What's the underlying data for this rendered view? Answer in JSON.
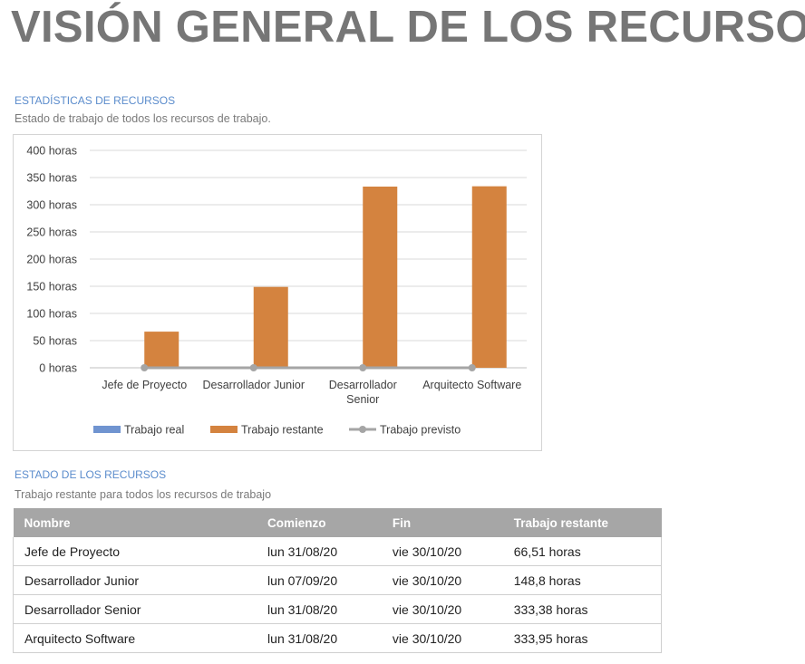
{
  "page": {
    "title": "VISIÓN GENERAL DE LOS RECURSOS"
  },
  "stats_section": {
    "heading": "ESTADÍSTICAS DE RECURSOS",
    "subheading": "Estado de trabajo de todos los recursos de trabajo."
  },
  "status_section": {
    "heading": "ESTADO DE LOS RECURSOS",
    "subheading": "Trabajo restante para todos los recursos de trabajo"
  },
  "chart_data": {
    "type": "bar",
    "categories": [
      [
        "Jefe de Proyecto"
      ],
      [
        "Desarrollador Junior"
      ],
      [
        "Desarrollador",
        "Senior"
      ],
      [
        "Arquitecto Software"
      ]
    ],
    "y_ticks": [
      "0 horas",
      "50 horas",
      "100 horas",
      "150 horas",
      "200 horas",
      "250 horas",
      "300 horas",
      "350 horas",
      "400 horas"
    ],
    "ylim": [
      0,
      400
    ],
    "grid": true,
    "legend_position": "bottom",
    "series": [
      {
        "name": "Trabajo real",
        "type": "bar",
        "color": "#7094d0",
        "values": [
          0,
          0,
          0,
          0
        ]
      },
      {
        "name": "Trabajo restante",
        "type": "bar",
        "color": "#d4833f",
        "values": [
          66.51,
          148.8,
          333.38,
          333.95
        ]
      },
      {
        "name": "Trabajo previsto",
        "type": "line",
        "color": "#a5a5a5",
        "values": [
          0,
          0,
          0,
          0
        ]
      }
    ]
  },
  "table": {
    "headers": [
      "Nombre",
      "Comienzo",
      "Fin",
      "Trabajo restante"
    ],
    "rows": [
      [
        "Jefe de Proyecto",
        "lun 31/08/20",
        "vie 30/10/20",
        "66,51 horas"
      ],
      [
        "Desarrollador Junior",
        "lun 07/09/20",
        "vie 30/10/20",
        "148,8 horas"
      ],
      [
        "Desarrollador Senior",
        "lun 31/08/20",
        "vie 30/10/20",
        "333,38 horas"
      ],
      [
        "Arquitecto Software",
        "lun 31/08/20",
        "vie 30/10/20",
        "333,95 horas"
      ]
    ]
  }
}
